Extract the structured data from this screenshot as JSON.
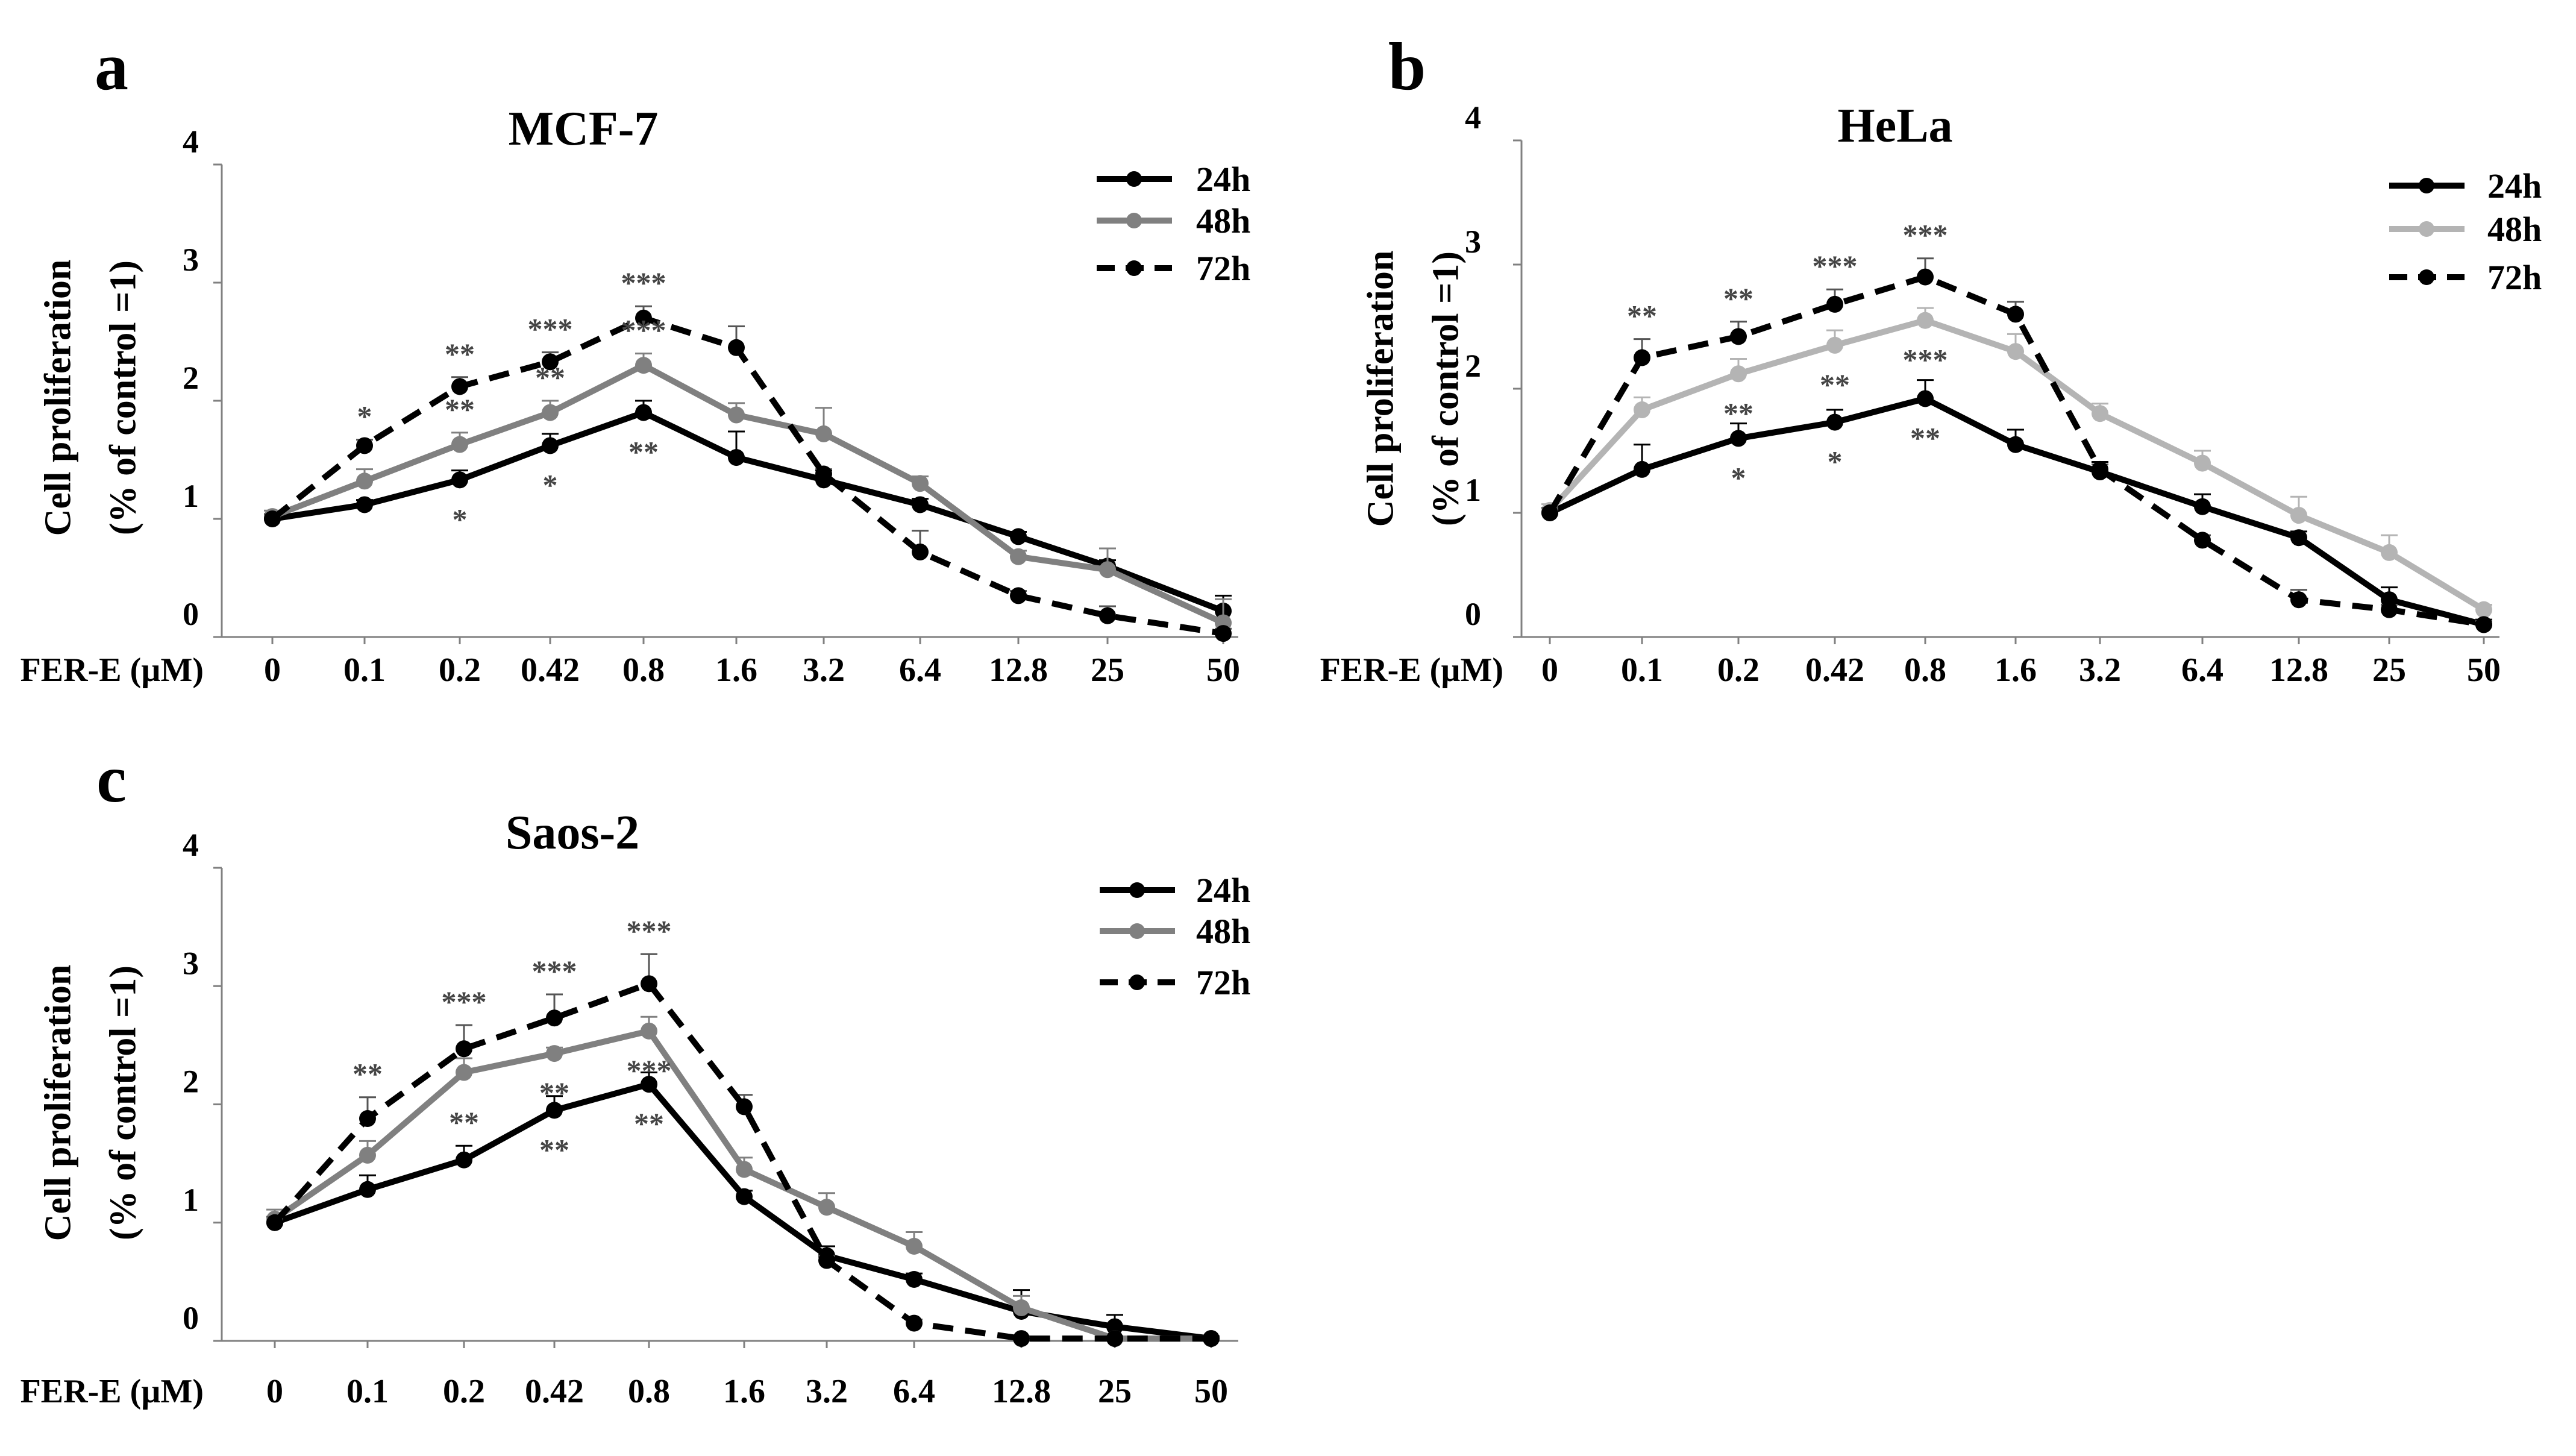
{
  "figure": {
    "colors": {
      "h24": "#000000",
      "h48": "#808080",
      "h72": "#000000",
      "hela48": "#b4b4b4",
      "axis": "#808080",
      "stars": "#444444"
    }
  },
  "chart_data": [
    {
      "type": "line",
      "panel_label": "a",
      "title": "MCF-7",
      "ylabel_line1": "Cell proliferation",
      "ylabel_line2": "(% of control =1)",
      "xlabel": "FER-E (µM)",
      "categories": [
        "0",
        "0.1",
        "0.2",
        "0.42",
        "0.8",
        "1.6",
        "3.2",
        "6.4",
        "12.8",
        "25",
        "50"
      ],
      "yticks": [
        "0",
        "1",
        "2",
        "3",
        "4"
      ],
      "ylim": [
        0,
        4
      ],
      "legend": [
        "24h",
        "48h",
        "72h"
      ],
      "series": [
        {
          "name": "24h",
          "style": "solid",
          "color": "#000000",
          "values": [
            1.0,
            1.12,
            1.33,
            1.62,
            1.9,
            1.52,
            1.33,
            1.12,
            0.85,
            0.6,
            0.22
          ],
          "errors": [
            0.04,
            0.04,
            0.08,
            0.1,
            0.1,
            0.22,
            0.08,
            0.05,
            0.04,
            0.05,
            0.13
          ]
        },
        {
          "name": "48h",
          "style": "solid",
          "color": "#808080",
          "values": [
            1.02,
            1.32,
            1.63,
            1.9,
            2.3,
            1.88,
            1.72,
            1.3,
            0.68,
            0.57,
            0.12
          ],
          "errors": [
            0.05,
            0.1,
            0.1,
            0.1,
            0.1,
            0.1,
            0.22,
            0.06,
            0.05,
            0.18,
            0.2
          ]
        },
        {
          "name": "72h",
          "style": "dashed",
          "color": "#000000",
          "values": [
            1.0,
            1.62,
            2.12,
            2.33,
            2.7,
            2.45,
            1.38,
            0.72,
            0.35,
            0.18,
            0.03
          ],
          "errors": [
            0.04,
            0.05,
            0.08,
            0.08,
            0.1,
            0.18,
            0.04,
            0.18,
            0.04,
            0.08,
            0.04
          ]
        }
      ],
      "annotations": [
        {
          "series": 2,
          "index": 1,
          "text": "*",
          "pos": "above"
        },
        {
          "series": 1,
          "index": 2,
          "text": "**",
          "pos": "above"
        },
        {
          "series": 0,
          "index": 2,
          "text": "*",
          "pos": "below"
        },
        {
          "series": 2,
          "index": 2,
          "text": "**",
          "pos": "above"
        },
        {
          "series": 2,
          "index": 3,
          "text": "***",
          "pos": "above"
        },
        {
          "series": 1,
          "index": 3,
          "text": "**",
          "pos": "above"
        },
        {
          "series": 0,
          "index": 3,
          "text": "*",
          "pos": "below"
        },
        {
          "series": 2,
          "index": 4,
          "text": "***",
          "pos": "above"
        },
        {
          "series": 1,
          "index": 4,
          "text": "***",
          "pos": "above"
        },
        {
          "series": 0,
          "index": 4,
          "text": "**",
          "pos": "below"
        }
      ]
    },
    {
      "type": "line",
      "panel_label": "b",
      "title": "HeLa",
      "ylabel_line1": "Cell proliferation",
      "ylabel_line2": "(% of control =1)",
      "xlabel": "FER-E (µM)",
      "categories": [
        "0",
        "0.1",
        "0.2",
        "0.42",
        "0.8",
        "1.6",
        "3.2",
        "6.4",
        "12.8",
        "25",
        "50"
      ],
      "yticks": [
        "0",
        "1",
        "2",
        "3",
        "4"
      ],
      "ylim": [
        0,
        4
      ],
      "legend": [
        "24h",
        "48h",
        "72h"
      ],
      "series": [
        {
          "name": "24h",
          "style": "solid",
          "color": "#000000",
          "values": [
            1.0,
            1.35,
            1.6,
            1.73,
            1.92,
            1.55,
            1.33,
            1.05,
            0.8,
            0.3,
            0.1
          ],
          "errors": [
            0.04,
            0.2,
            0.12,
            0.1,
            0.15,
            0.12,
            0.08,
            0.1,
            0.05,
            0.1,
            0.04
          ]
        },
        {
          "name": "48h",
          "style": "solid",
          "color": "#b4b4b4",
          "values": [
            1.02,
            1.83,
            2.12,
            2.35,
            2.55,
            2.3,
            1.8,
            1.4,
            0.98,
            0.68,
            0.22
          ],
          "errors": [
            0.05,
            0.1,
            0.12,
            0.12,
            0.1,
            0.14,
            0.08,
            0.1,
            0.15,
            0.14,
            0.04
          ]
        },
        {
          "name": "72h",
          "style": "dashed",
          "color": "#000000",
          "values": [
            1.0,
            2.25,
            2.42,
            2.68,
            2.9,
            2.6,
            1.35,
            0.78,
            0.3,
            0.22,
            0.1
          ],
          "errors": [
            0.04,
            0.15,
            0.12,
            0.12,
            0.15,
            0.1,
            0.04,
            0.04,
            0.08,
            0.04,
            0.03
          ]
        }
      ],
      "annotations": [
        {
          "series": 2,
          "index": 1,
          "text": "**",
          "pos": "above"
        },
        {
          "series": 2,
          "index": 2,
          "text": "**",
          "pos": "above"
        },
        {
          "series": 1,
          "index": 2,
          "text": "**",
          "pos": "below"
        },
        {
          "series": 0,
          "index": 2,
          "text": "*",
          "pos": "below"
        },
        {
          "series": 2,
          "index": 3,
          "text": "***",
          "pos": "above"
        },
        {
          "series": 1,
          "index": 3,
          "text": "**",
          "pos": "below"
        },
        {
          "series": 0,
          "index": 3,
          "text": "*",
          "pos": "below"
        },
        {
          "series": 2,
          "index": 4,
          "text": "***",
          "pos": "above"
        },
        {
          "series": 1,
          "index": 4,
          "text": "***",
          "pos": "below"
        },
        {
          "series": 0,
          "index": 4,
          "text": "**",
          "pos": "below"
        }
      ]
    },
    {
      "type": "line",
      "panel_label": "c",
      "title": "Saos-2",
      "ylabel_line1": "Cell proliferation",
      "ylabel_line2": "(% of control =1)",
      "xlabel": "FER-E (µM)",
      "categories": [
        "0",
        "0.1",
        "0.2",
        "0.42",
        "0.8",
        "1.6",
        "3.2",
        "6.4",
        "12.8",
        "25",
        "50"
      ],
      "yticks": [
        "0",
        "1",
        "2",
        "3",
        "4"
      ],
      "ylim": [
        0,
        4
      ],
      "legend": [
        "24h",
        "48h",
        "72h"
      ],
      "series": [
        {
          "name": "24h",
          "style": "solid",
          "color": "#000000",
          "values": [
            1.0,
            1.28,
            1.53,
            1.95,
            2.17,
            1.22,
            0.72,
            0.52,
            0.25,
            0.12,
            0.02
          ],
          "errors": [
            0.05,
            0.12,
            0.12,
            0.12,
            0.1,
            0.05,
            0.08,
            0.05,
            0.18,
            0.1,
            0.02
          ]
        },
        {
          "name": "48h",
          "style": "solid",
          "color": "#808080",
          "values": [
            1.03,
            1.57,
            2.27,
            2.43,
            2.62,
            1.45,
            1.13,
            0.8,
            0.28,
            0.02,
            0.02
          ],
          "errors": [
            0.08,
            0.12,
            0.12,
            0.05,
            0.12,
            0.1,
            0.12,
            0.12,
            0.1,
            0.02,
            0.02
          ]
        },
        {
          "name": "72h",
          "style": "dashed",
          "color": "#000000",
          "values": [
            1.0,
            1.88,
            2.47,
            2.73,
            3.02,
            1.98,
            0.68,
            0.15,
            0.02,
            0.02,
            0.02
          ],
          "errors": [
            0.05,
            0.18,
            0.2,
            0.2,
            0.25,
            0.1,
            0.04,
            0.03,
            0.02,
            0.02,
            0.02
          ]
        }
      ],
      "annotations": [
        {
          "series": 2,
          "index": 1,
          "text": "**",
          "pos": "above"
        },
        {
          "series": 2,
          "index": 2,
          "text": "***",
          "pos": "above"
        },
        {
          "series": 0,
          "index": 2,
          "text": "**",
          "pos": "above"
        },
        {
          "series": 2,
          "index": 3,
          "text": "***",
          "pos": "above"
        },
        {
          "series": 1,
          "index": 3,
          "text": "**",
          "pos": "below"
        },
        {
          "series": 0,
          "index": 3,
          "text": "**",
          "pos": "below"
        },
        {
          "series": 2,
          "index": 4,
          "text": "***",
          "pos": "above"
        },
        {
          "series": 1,
          "index": 4,
          "text": "***",
          "pos": "below"
        },
        {
          "series": 0,
          "index": 4,
          "text": "**",
          "pos": "below"
        }
      ]
    }
  ]
}
